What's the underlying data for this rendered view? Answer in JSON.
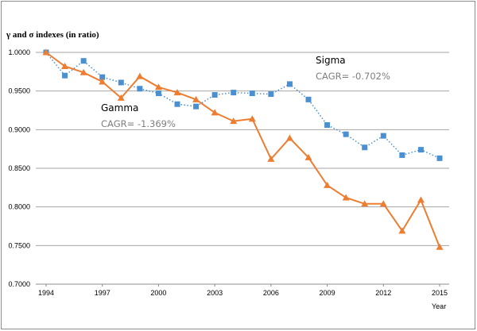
{
  "chart_data": {
    "type": "line",
    "title": "γ and σ indexes (in ratio)",
    "xlabel": "Year",
    "ylabel": "",
    "x": [
      1994,
      1995,
      1996,
      1997,
      1998,
      1999,
      2000,
      2001,
      2002,
      2003,
      2004,
      2005,
      2006,
      2007,
      2008,
      2009,
      2010,
      2011,
      2012,
      2013,
      2014,
      2015
    ],
    "x_tick_labels": [
      "1994",
      "1997",
      "2000",
      "2003",
      "2006",
      "2009",
      "2012",
      "2015"
    ],
    "y_tick_labels": [
      "1.0000",
      "0.9500",
      "0.9000",
      "0.8500",
      "0.8000",
      "0.7500",
      "0.7000"
    ],
    "ylim": [
      0.7,
      1.0
    ],
    "xlim": [
      1994,
      2015
    ],
    "grid": "horizontal",
    "series": [
      {
        "name": "Sigma",
        "color": "#4a90d0",
        "marker": "square",
        "line_style": "dotted",
        "values": [
          1.0,
          0.97,
          0.989,
          0.968,
          0.961,
          0.953,
          0.947,
          0.933,
          0.93,
          0.945,
          0.948,
          0.947,
          0.946,
          0.959,
          0.939,
          0.906,
          0.894,
          0.877,
          0.892,
          0.867,
          0.874,
          0.863
        ]
      },
      {
        "name": "Gamma",
        "color": "#ed7d31",
        "marker": "triangle",
        "line_style": "solid",
        "values": [
          1.0,
          0.982,
          0.974,
          0.962,
          0.941,
          0.969,
          0.955,
          0.948,
          0.939,
          0.922,
          0.911,
          0.914,
          0.862,
          0.889,
          0.864,
          0.828,
          0.812,
          0.804,
          0.804,
          0.769,
          0.809,
          0.748
        ]
      }
    ],
    "annotations": [
      {
        "name": "Sigma",
        "cagr": "CAGR= -0.702%"
      },
      {
        "name": "Gamma",
        "cagr": "CAGR= -1.369%"
      }
    ]
  }
}
